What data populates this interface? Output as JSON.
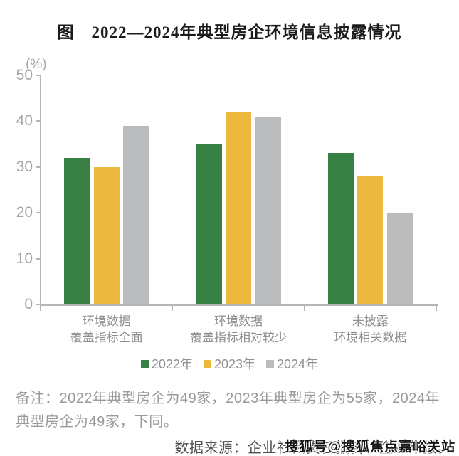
{
  "title": "图　2022—2024年典型房企环境信息披露情况",
  "chart_data": {
    "type": "bar",
    "title": "图　2022—2024年典型房企环境信息披露情况",
    "unit_label": "(%)",
    "xlabel": "",
    "ylabel": "(%)",
    "ylim": [
      0,
      50
    ],
    "yticks": [
      0,
      10,
      20,
      30,
      40,
      50
    ],
    "grid": false,
    "legend_position": "bottom",
    "categories": [
      [
        "环境数据",
        "覆盖指标全面"
      ],
      [
        "环境数据",
        "覆盖指标相对较少"
      ],
      [
        "未披露",
        "环境相关数据"
      ]
    ],
    "series": [
      {
        "name": "2022年",
        "color": "#388044",
        "values": [
          32,
          35,
          33
        ]
      },
      {
        "name": "2023年",
        "color": "#ecb83d",
        "values": [
          30,
          42,
          28
        ]
      },
      {
        "name": "2024年",
        "color": "#bbbcbe",
        "values": [
          39,
          41,
          20
        ]
      }
    ]
  },
  "notes": {
    "remark": "备注：2022年典型房企为49家，2023年典型房企为55家，2024年典型房企为49家，下同。",
    "source": "数据来源：企业社会责任报告、企业年报。",
    "watermark": "搜狐号@搜狐焦点嘉峪关站"
  },
  "colors": {
    "series_2022": "#388044",
    "series_2023": "#ecb83d",
    "series_2024": "#bbbcbe",
    "axis": "#b5b5b8",
    "tick_label": "#a6a6a6",
    "category_label": "#8f8f8f",
    "note_text": "#9a9a9a",
    "source_text": "#4d4d4d",
    "title_text": "#1b1b1b"
  }
}
